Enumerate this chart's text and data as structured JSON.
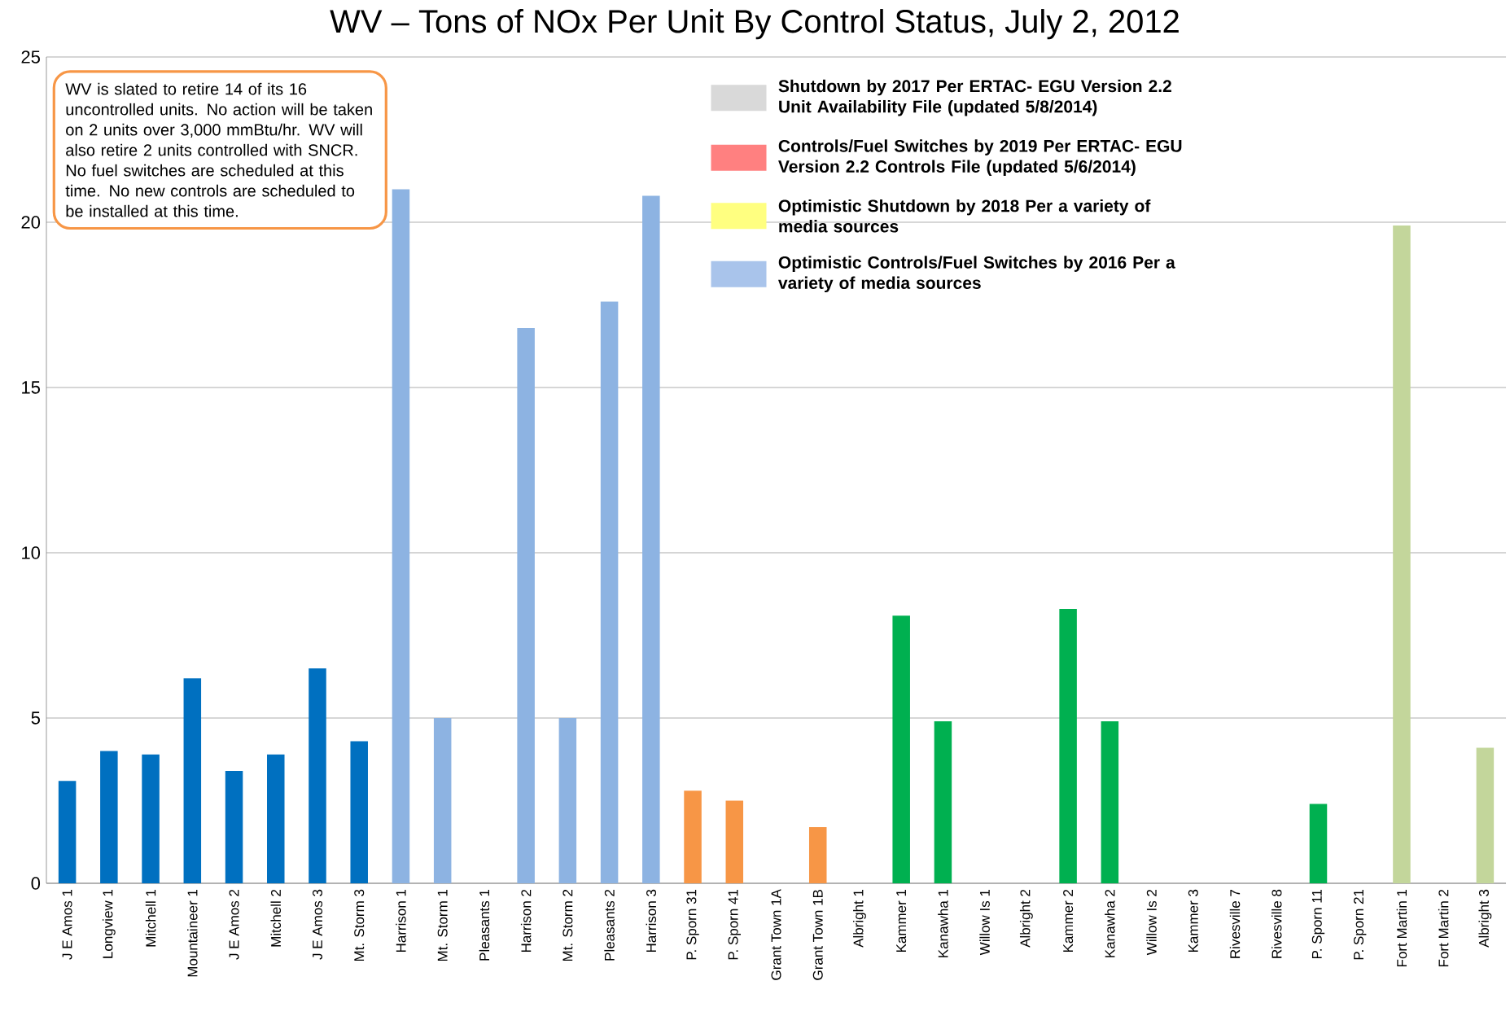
{
  "chart_data": {
    "type": "bar",
    "title": "WV – Tons of NOx Per Unit By Control Status, July 2, 2012",
    "categories": [
      "J E Amos 1",
      "Longview 1",
      "Mitchell 1",
      "Mountaineer 1",
      "J E Amos 2",
      "Mitchell 2",
      "J E Amos 3",
      "Mt. Storm 3",
      "Harrison 1",
      "Mt. Storm 1",
      "Pleasants 1",
      "Harrison 2",
      "Mt. Storm 2",
      "Pleasants 2",
      "Harrison 3",
      "P. Sporn 31",
      "P. Sporn 41",
      "Grant Town 1A",
      "Grant Town 1B",
      "Albright 1",
      "Kammer 1",
      "Kanawha 1",
      "Willow Is 1",
      "Albright 2",
      "Kammer 2",
      "Kanawha 2",
      "Willow Is 2",
      "Kammer 3",
      "Rivesville 7",
      "Rivesville 8",
      "P. Sporn 11",
      "P. Sporn 21",
      "Fort Martin 1",
      "Fort Martin 2",
      "Albright 3"
    ],
    "series": [
      {
        "values": [
          3.1,
          4.0,
          3.9,
          6.2,
          3.4,
          3.9,
          6.5,
          4.3,
          21,
          5.0,
          null,
          16.8,
          5.0,
          17.6,
          20.8,
          2.8,
          2.5,
          null,
          1.7,
          null,
          8.1,
          4.9,
          null,
          null,
          8.3,
          4.9,
          null,
          null,
          null,
          null,
          2.4,
          null,
          19.9,
          null,
          4.1
        ],
        "colors": [
          "#0070c0",
          "#0070c0",
          "#0070c0",
          "#0070c0",
          "#0070c0",
          "#0070c0",
          "#0070c0",
          "#0070c0",
          "#8db3e2",
          "#8db3e2",
          "#8db3e2",
          "#8db3e2",
          "#8db3e2",
          "#8db3e2",
          "#8db3e2",
          "#f79646",
          "#f79646",
          "#f79646",
          "#f79646",
          "#00b050",
          "#00b050",
          "#00b050",
          "#00b050",
          "#00b050",
          "#00b050",
          "#00b050",
          "#00b050",
          "#00b050",
          "#00b050",
          "#00b050",
          "#00b050",
          "#00b050",
          "#c3d69b",
          "#c3d69b",
          "#c3d69b"
        ]
      },
      {
        "name": "Shutdown by 2017 Per ERTAC- EGU Version 2.2 Unit Availability File (updated 5/8/2014)",
        "color": "#d9d9d9",
        "values": [
          null,
          null,
          null,
          null,
          null,
          null,
          null,
          null,
          null,
          null,
          null,
          null,
          null,
          null,
          null,
          null,
          null,
          null,
          null,
          null,
          null,
          null,
          null,
          null,
          null,
          null,
          null,
          null,
          null,
          null,
          null,
          null,
          null,
          null,
          null
        ]
      },
      {
        "name": "Controls/Fuel Switches by 2019 Per ERTAC- EGU Version 2.2 Controls File (updated 5/6/2014)",
        "color": "#ff8080",
        "values": [
          null,
          null,
          null,
          null,
          null,
          null,
          null,
          null,
          null,
          null,
          null,
          null,
          null,
          null,
          null,
          null,
          null,
          null,
          null,
          null,
          null,
          null,
          null,
          null,
          null,
          null,
          null,
          null,
          null,
          null,
          null,
          null,
          null,
          null,
          null
        ]
      },
      {
        "name": "Optimistic Shutdown by 2018 Per a variety of media sources",
        "color": "#ffff80",
        "values": [
          null,
          null,
          null,
          null,
          null,
          null,
          null,
          null,
          null,
          null,
          null,
          null,
          null,
          null,
          null,
          null,
          null,
          null,
          null,
          null,
          null,
          null,
          null,
          null,
          null,
          null,
          null,
          null,
          null,
          null,
          null,
          null,
          null,
          null,
          null
        ]
      },
      {
        "name": "Optimistic Controls/Fuel Switches by 2016 Per a variety of media sources",
        "color": "#a9c4eb",
        "values": [
          null,
          null,
          null,
          null,
          null,
          null,
          null,
          null,
          null,
          null,
          null,
          null,
          null,
          null,
          null,
          null,
          null,
          null,
          null,
          null,
          null,
          null,
          null,
          null,
          null,
          null,
          null,
          null,
          null,
          null,
          null,
          null,
          null,
          null,
          null
        ]
      }
    ],
    "ylim": [
      0,
      25
    ],
    "yticks": [
      0,
      5,
      10,
      15,
      20,
      25
    ],
    "grid": "y",
    "legend": "top right",
    "annotations": [
      "WV is slated to retire 14 of its 16 uncontrolled units. No action will be taken on 2 units over 3,000 mmBtu/hr.  WV will also retire 2 units controlled with SNCR. No fuel switches are scheduled at this time. No new controls are scheduled to be installed at this time."
    ]
  }
}
